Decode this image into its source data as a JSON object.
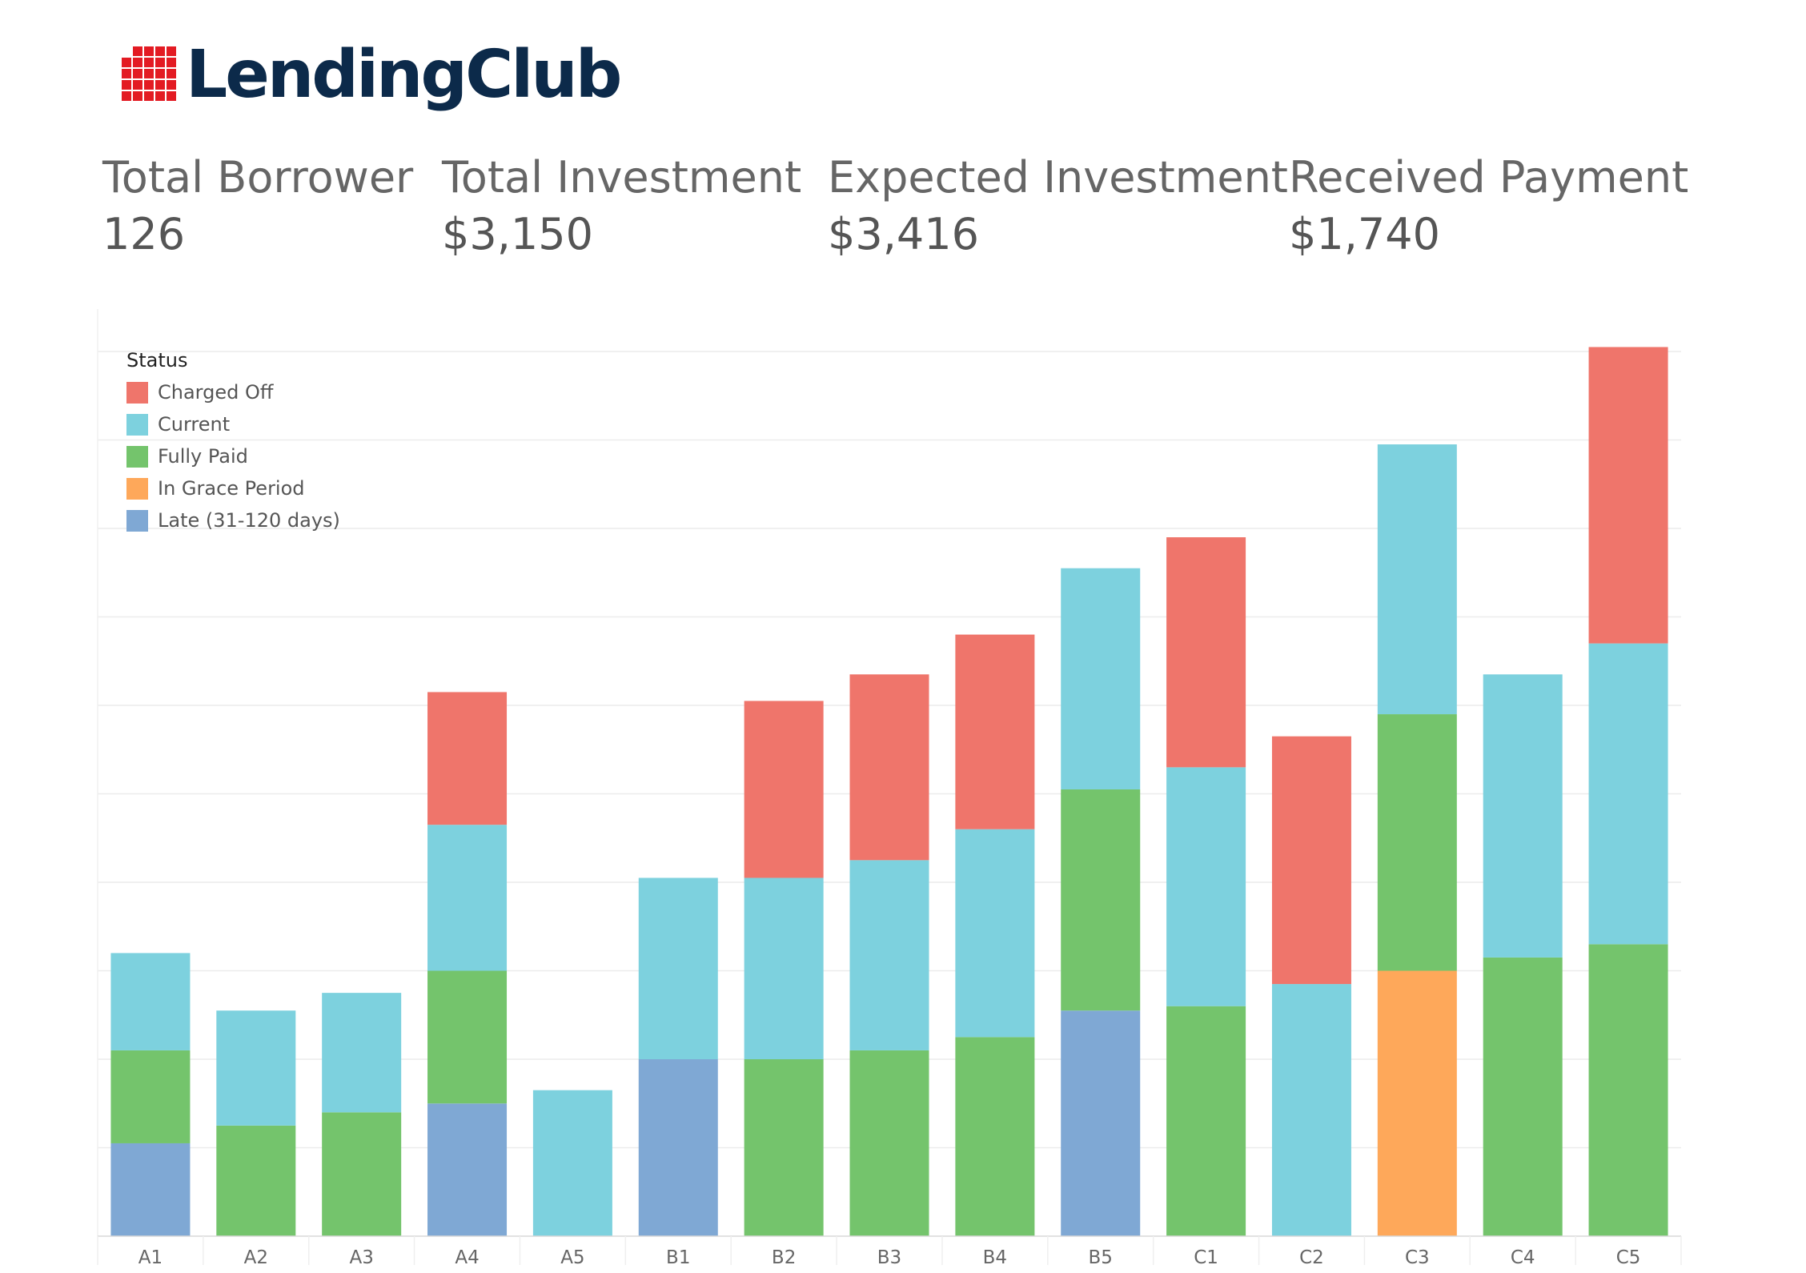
{
  "brand": {
    "name": "LendingClub",
    "mark_color": "#e31b23",
    "text_color": "#0c2a4a"
  },
  "kpis": [
    {
      "label": "Total Borrower",
      "value": "126"
    },
    {
      "label": "Total Investment",
      "value": "$3,150"
    },
    {
      "label": "Expected Investment",
      "value": "$3,416"
    },
    {
      "label": "Received Payment",
      "value": "$1,740"
    }
  ],
  "legend": {
    "title": "Status",
    "items": [
      {
        "label": "Charged Off",
        "color": "#ef756b"
      },
      {
        "label": "Current",
        "color": "#7dd1de"
      },
      {
        "label": "Fully Paid",
        "color": "#74c46c"
      },
      {
        "label": "In Grace Period",
        "color": "#fea85a"
      },
      {
        "label": "Late (31-120 days)",
        "color": "#7fa8d4"
      }
    ]
  },
  "chart_data": {
    "type": "bar",
    "stacked": true,
    "title": "",
    "xlabel": "",
    "ylabel": "",
    "ylim": [
      0,
      10
    ],
    "grid": true,
    "legend_position": "top-left",
    "categories": [
      "A1",
      "A2",
      "A3",
      "A4",
      "A5",
      "B1",
      "B2",
      "B3",
      "B4",
      "B5",
      "C1",
      "C2",
      "C3",
      "C4",
      "C5"
    ],
    "series": [
      {
        "name": "Late (31-120 days)",
        "color": "#7fa8d4",
        "values": [
          1.05,
          0,
          0,
          1.5,
          0,
          2.0,
          0,
          0,
          0,
          2.55,
          0,
          0,
          0,
          0,
          0
        ]
      },
      {
        "name": "In Grace Period",
        "color": "#fea85a",
        "values": [
          0,
          0,
          0,
          0,
          0,
          0,
          0,
          0,
          0,
          0,
          0,
          0,
          3.0,
          0,
          0
        ]
      },
      {
        "name": "Fully Paid",
        "color": "#74c46c",
        "values": [
          1.05,
          1.25,
          1.4,
          1.5,
          0,
          0,
          2.0,
          2.1,
          2.25,
          2.5,
          2.6,
          0,
          2.9,
          3.15,
          3.3
        ]
      },
      {
        "name": "Current",
        "color": "#7dd1de",
        "values": [
          1.1,
          1.3,
          1.35,
          1.65,
          1.65,
          2.05,
          2.05,
          2.15,
          2.35,
          2.5,
          2.7,
          2.85,
          3.05,
          3.2,
          3.4
        ]
      },
      {
        "name": "Charged Off",
        "color": "#ef756b",
        "values": [
          0,
          0,
          0,
          1.5,
          0,
          0,
          2.0,
          2.1,
          2.2,
          0,
          2.6,
          2.8,
          0,
          0,
          3.35
        ]
      }
    ]
  }
}
